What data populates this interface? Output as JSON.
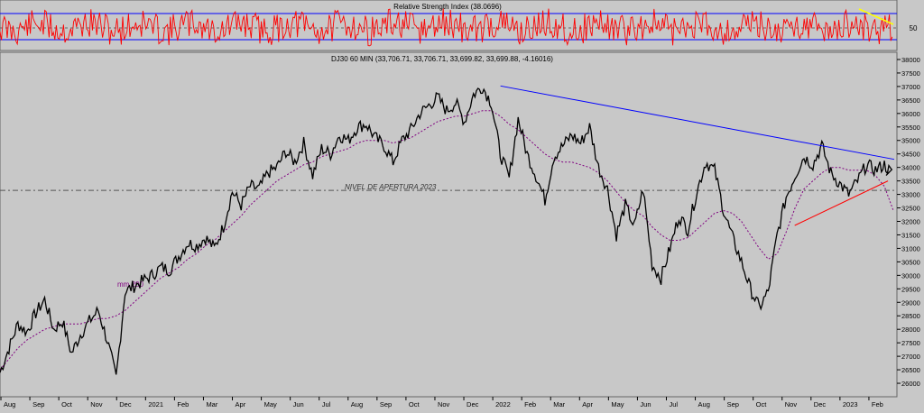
{
  "rsi_panel": {
    "title": "Relative Strength Index (38.0696)",
    "axis_label": "50"
  },
  "chart_data": {
    "type": "line",
    "title": "DJ30 60 MIN (33,706.71, 33,706.71, 33,699.82, 33,699.88, -4.16016)",
    "ylim": [
      25500,
      38200
    ],
    "y_ticks": [
      26000,
      26500,
      27000,
      27500,
      28000,
      28500,
      29000,
      29500,
      30000,
      30500,
      31000,
      31500,
      32000,
      32500,
      33000,
      33500,
      34000,
      34500,
      35000,
      35500,
      36000,
      36500,
      37000,
      37500,
      38000
    ],
    "x_labels": [
      "Aug",
      "Sep",
      "Oct",
      "Nov",
      "Dec",
      "2021",
      "Feb",
      "Mar",
      "Apr",
      "May",
      "Jun",
      "Jul",
      "Aug",
      "Sep",
      "Oct",
      "Nov",
      "Dec",
      "2022",
      "Feb",
      "Mar",
      "Apr",
      "May",
      "Jun",
      "Jul",
      "Aug",
      "Sep",
      "Oct",
      "Nov",
      "Dec",
      "2023",
      "Feb"
    ],
    "price": [
      26400,
      27300,
      28200,
      27900,
      28600,
      29100,
      28000,
      28300,
      27100,
      27800,
      28300,
      28700,
      27600,
      26200,
      29400,
      29600,
      29800,
      30000,
      30300,
      30200,
      30700,
      31200,
      31100,
      31400,
      31000,
      31800,
      33100,
      32600,
      33300,
      33200,
      33800,
      34000,
      34600,
      34200,
      34900,
      33700,
      34700,
      34500,
      35200,
      35000,
      35500,
      35600,
      35100,
      34800,
      34200,
      35000,
      35400,
      36000,
      36300,
      36600,
      36100,
      36400,
      35700,
      36700,
      37000,
      36400,
      34500,
      33600,
      35800,
      34500,
      33700,
      32800,
      34400,
      34800,
      35200,
      34900,
      35500,
      34000,
      33200,
      31500,
      32600,
      31800,
      33200,
      30400,
      29900,
      31000,
      32200,
      31700,
      33100,
      34200,
      33900,
      32400,
      31400,
      30500,
      29500,
      28800,
      29400,
      31500,
      32900,
      33700,
      34400,
      34100,
      34800,
      33800,
      33400,
      33000,
      33500,
      34100,
      33900,
      34100,
      33700
    ],
    "ma200": [
      26500,
      26900,
      27300,
      27600,
      27800,
      28000,
      28100,
      28200,
      28200,
      28200,
      28300,
      28400,
      28400,
      28500,
      28700,
      29000,
      29300,
      29600,
      29900,
      30100,
      30300,
      30600,
      30800,
      31100,
      31300,
      31600,
      31900,
      32200,
      32600,
      32900,
      33200,
      33500,
      33700,
      33900,
      34100,
      34200,
      34400,
      34500,
      34600,
      34700,
      34900,
      35000,
      35000,
      35000,
      34900,
      35000,
      35100,
      35300,
      35500,
      35700,
      35800,
      35900,
      35900,
      36000,
      36100,
      36100,
      35900,
      35600,
      35400,
      35100,
      34800,
      34500,
      34300,
      34200,
      34200,
      34100,
      34000,
      33800,
      33500,
      33100,
      32700,
      32400,
      32200,
      31800,
      31500,
      31300,
      31300,
      31400,
      31700,
      32000,
      32300,
      32400,
      32300,
      32000,
      31500,
      31000,
      30600,
      30800,
      31600,
      32500,
      33200,
      33500,
      33800,
      34000,
      34000,
      33900,
      33900,
      33900,
      33700,
      33300,
      32400
    ],
    "ma_label": "mm 200",
    "level_label": "NIVEL DE APERTURA 2023",
    "level_value": 33150,
    "resistance_line": {
      "start": [
        0.8,
        37020
      ],
      "end": [
        1.0,
        34300
      ]
    },
    "support_line": {
      "start": [
        0.886,
        31850
      ],
      "end": [
        0.997,
        33500
      ]
    },
    "colors": {
      "price": "#000000",
      "ma": "#800080",
      "level": "#555555",
      "resistance": "#0000ff",
      "support": "#ff0000",
      "rsi": "#ff0000",
      "rsi_trend": "#ffff00",
      "rsi_bands": "#0000ff"
    }
  }
}
